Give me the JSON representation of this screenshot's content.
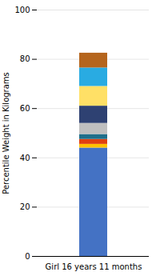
{
  "chart_data": {
    "type": "bar",
    "stacked": true,
    "categories": [
      "Girl 16 years 11 months"
    ],
    "series": [
      {
        "color": "#4472C4",
        "values": [
          44
        ]
      },
      {
        "color": "#FFC000",
        "values": [
          1.5
        ]
      },
      {
        "color": "#E04010",
        "values": [
          2.0
        ]
      },
      {
        "color": "#1F6F8B",
        "values": [
          2.0
        ]
      },
      {
        "color": "#BFBFBF",
        "values": [
          4.5
        ]
      },
      {
        "color": "#2E4172",
        "values": [
          7.0
        ]
      },
      {
        "color": "#FFE066",
        "values": [
          8.0
        ]
      },
      {
        "color": "#29ABE2",
        "values": [
          7.5
        ]
      },
      {
        "color": "#B5651D",
        "values": [
          6.0
        ]
      }
    ],
    "ylabel": "Percentile Weight in Kilograms",
    "ylim": [
      0,
      100
    ],
    "yticks": [
      0,
      20,
      40,
      60,
      80,
      100
    ],
    "grid": true
  }
}
